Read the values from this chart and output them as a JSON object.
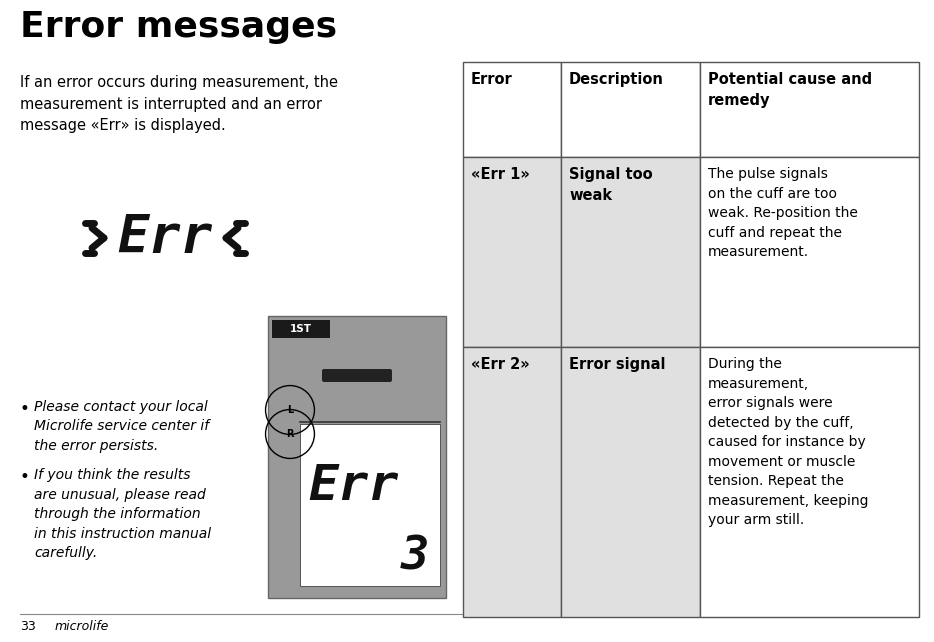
{
  "title": "Error messages",
  "page_number": "33",
  "brand": "microlife",
  "intro_text": "If an error occurs during measurement, the\nmeasurement is interrupted and an error\nmessage «Err» is displayed.",
  "bullet1": "Please contact your local\nMicrolife service center if\nthe error persists.",
  "bullet2": "If you think the results\nare unusual, please read\nthrough the information\nin this instruction manual\ncarefully.",
  "header_row": [
    "Error",
    "Description",
    "Potential cause and\nremedy"
  ],
  "row1_col0": "«Err 1»",
  "row1_col1": "Signal too\nweak",
  "row1_col2": "The pulse signals\non the cuff are too\nweak. Re-position the\ncuff and repeat the\nmeasurement.",
  "row2_col0": "«Err 2»",
  "row2_col1": "Error signal",
  "row2_col2": "During the\nmeasurement,\nerror signals were\ndetected by the cuff,\ncaused for instance by\nmovement or muscle\ntension. Repeat the\nmeasurement, keeping\nyour arm still.",
  "bg_color": "#ffffff",
  "table_border_color": "#555555",
  "cell_bg_light": "#e0e0e0",
  "cell_bg_white": "#ffffff",
  "title_color": "#000000",
  "text_color": "#000000",
  "dev_bg": "#999999",
  "dev_screen_bg": "#ffffff",
  "dev_label_bg": "#1a1a1a"
}
